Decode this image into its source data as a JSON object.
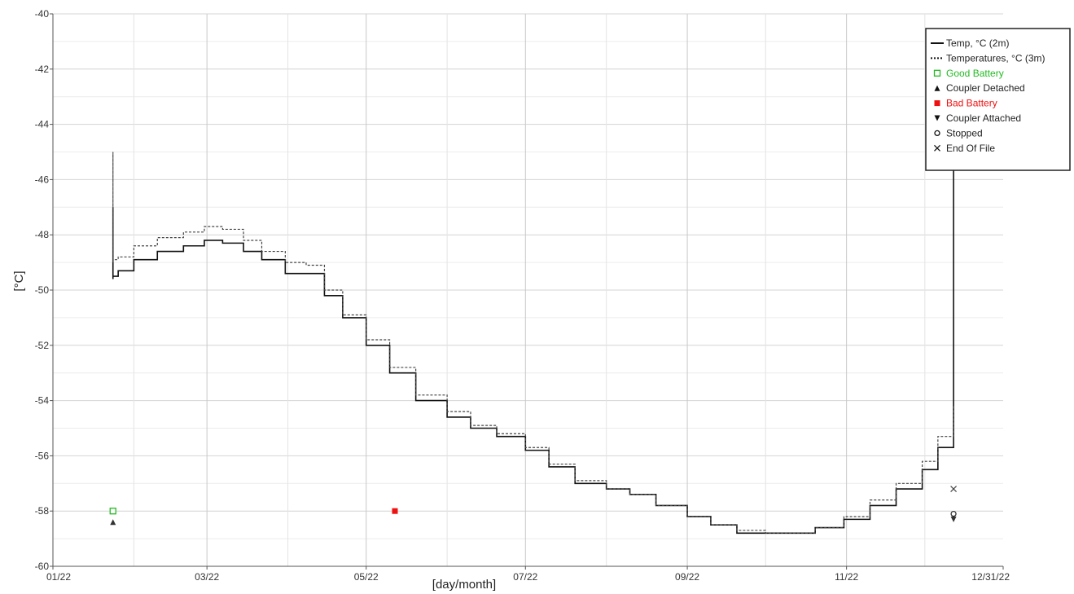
{
  "chart_data": {
    "type": "line",
    "title": "",
    "xlabel": "[day/month]",
    "ylabel": "[°C]",
    "xlim": [
      "2022-01-01",
      "2022-12-31"
    ],
    "ylim": [
      -60,
      -40
    ],
    "grid": true,
    "y_ticks": [
      -40,
      -42,
      -44,
      -46,
      -48,
      -50,
      -52,
      -54,
      -56,
      -58,
      -60
    ],
    "y_tick_labels": [
      "-40",
      "-42",
      "-44",
      "-46",
      "-48",
      "-50",
      "-52",
      "-54",
      "-56",
      "-58",
      "-60"
    ],
    "x_ticks": [
      "2022-01-01",
      "2022-03-01",
      "2022-05-01",
      "2022-07-01",
      "2022-09-01",
      "2022-11-01",
      "2022-12-31"
    ],
    "x_tick_labels": [
      "01/22",
      "03/22",
      "05/22",
      "07/22",
      "09/22",
      "11/22",
      "12/31/22"
    ],
    "legend_position": "top-right",
    "series": [
      {
        "name": "Temp, °C (2m)",
        "style": "solid",
        "color": "#111111",
        "x": [
          "2022-01-24",
          "2022-01-24",
          "2022-01-24",
          "2022-01-26",
          "2022-02-01",
          "2022-02-10",
          "2022-02-20",
          "2022-02-28",
          "2022-03-07",
          "2022-03-15",
          "2022-03-22",
          "2022-03-31",
          "2022-04-08",
          "2022-04-15",
          "2022-04-22",
          "2022-05-01",
          "2022-05-10",
          "2022-05-20",
          "2022-06-01",
          "2022-06-10",
          "2022-06-20",
          "2022-07-01",
          "2022-07-10",
          "2022-07-20",
          "2022-08-01",
          "2022-08-10",
          "2022-08-20",
          "2022-09-01",
          "2022-09-10",
          "2022-09-20",
          "2022-10-01",
          "2022-10-10",
          "2022-10-20",
          "2022-10-31",
          "2022-11-10",
          "2022-11-20",
          "2022-11-30",
          "2022-12-06",
          "2022-12-12",
          "2022-12-12"
        ],
        "y": [
          -49.6,
          -47.0,
          -49.5,
          -49.3,
          -48.9,
          -48.6,
          -48.4,
          -48.2,
          -48.3,
          -48.6,
          -48.9,
          -49.4,
          -49.4,
          -50.2,
          -51.0,
          -52.0,
          -53.0,
          -54.0,
          -54.6,
          -55.0,
          -55.3,
          -55.8,
          -56.4,
          -57.0,
          -57.2,
          -57.4,
          -57.8,
          -58.2,
          -58.5,
          -58.8,
          -58.8,
          -58.8,
          -58.6,
          -58.3,
          -57.8,
          -57.2,
          -56.5,
          -55.7,
          -54.6,
          -45.2
        ]
      },
      {
        "name": "Temperatures, °C (3m)",
        "style": "dashed",
        "color": "#444444",
        "x": [
          "2022-01-24",
          "2022-01-24",
          "2022-01-24",
          "2022-01-26",
          "2022-02-01",
          "2022-02-10",
          "2022-02-20",
          "2022-02-28",
          "2022-03-07",
          "2022-03-15",
          "2022-03-22",
          "2022-03-31",
          "2022-04-08",
          "2022-04-15",
          "2022-04-22",
          "2022-05-01",
          "2022-05-10",
          "2022-05-20",
          "2022-06-01",
          "2022-06-10",
          "2022-06-20",
          "2022-07-01",
          "2022-07-10",
          "2022-07-20",
          "2022-08-01",
          "2022-08-10",
          "2022-08-20",
          "2022-09-01",
          "2022-09-10",
          "2022-09-20",
          "2022-10-01",
          "2022-10-10",
          "2022-10-20",
          "2022-10-31",
          "2022-11-10",
          "2022-11-20",
          "2022-11-30",
          "2022-12-06",
          "2022-12-12"
        ],
        "y": [
          -49.0,
          -45.0,
          -48.9,
          -48.8,
          -48.4,
          -48.1,
          -47.9,
          -47.7,
          -47.8,
          -48.2,
          -48.6,
          -49.0,
          -49.1,
          -50.0,
          -50.9,
          -51.8,
          -52.8,
          -53.8,
          -54.4,
          -54.9,
          -55.2,
          -55.7,
          -56.3,
          -56.9,
          -57.2,
          -57.4,
          -57.8,
          -58.2,
          -58.5,
          -58.7,
          -58.8,
          -58.8,
          -58.6,
          -58.2,
          -57.6,
          -57.0,
          -56.2,
          -55.3,
          -54.2
        ]
      }
    ],
    "events": [
      {
        "name": "Good Battery",
        "x": "2022-01-24",
        "y": -58.0,
        "marker": "hollow-square",
        "color": "#22bb22"
      },
      {
        "name": "Coupler Detached",
        "x": "2022-01-24",
        "y": -58.4,
        "marker": "triangle-up",
        "color": "#333333"
      },
      {
        "name": "Bad Battery",
        "x": "2022-05-12",
        "y": -58.0,
        "marker": "filled-square",
        "color": "#ee1111"
      },
      {
        "name": "End Of File",
        "x": "2022-12-12",
        "y": -57.2,
        "marker": "x",
        "color": "#444444"
      },
      {
        "name": "Stopped",
        "x": "2022-12-12",
        "y": -58.1,
        "marker": "circle",
        "color": "#333333"
      },
      {
        "name": "Coupler Attached",
        "x": "2022-12-12",
        "y": -58.3,
        "marker": "triangle-down",
        "color": "#333333"
      }
    ]
  },
  "legend": {
    "items": [
      {
        "label": "Temp, °C (2m)",
        "marker": "line-solid",
        "color": "#111111"
      },
      {
        "label": "Temperatures, °C (3m)",
        "marker": "line-dashed",
        "color": "#111111"
      },
      {
        "label": "Good Battery",
        "marker": "hollow-square",
        "color": "#22bb22"
      },
      {
        "label": "Coupler Detached",
        "marker": "triangle-up",
        "color": "#111111"
      },
      {
        "label": "Bad Battery",
        "marker": "filled-square",
        "color": "#ee1111"
      },
      {
        "label": "Coupler Attached",
        "marker": "triangle-down",
        "color": "#111111"
      },
      {
        "label": "Stopped",
        "marker": "circle",
        "color": "#111111"
      },
      {
        "label": "End Of File",
        "marker": "x",
        "color": "#111111"
      }
    ]
  }
}
